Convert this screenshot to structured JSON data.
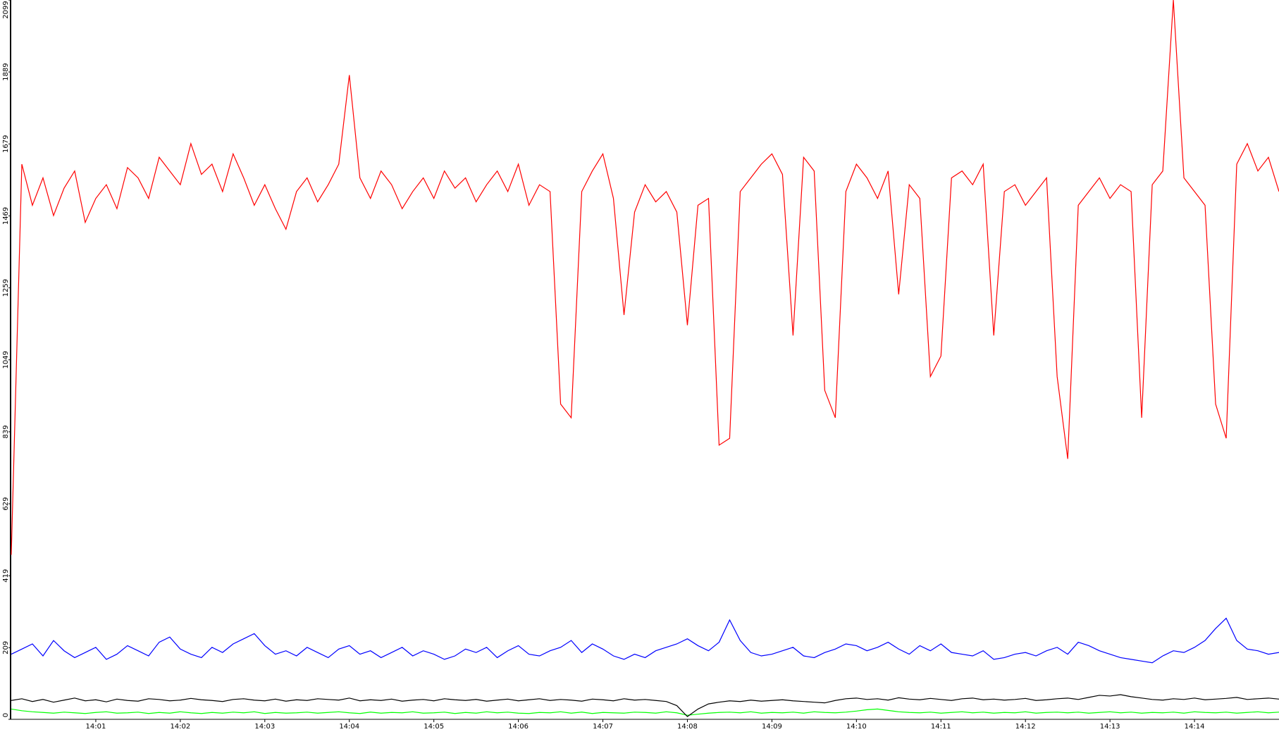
{
  "chart_data": {
    "type": "line",
    "x": [
      0,
      0.125,
      0.25,
      0.375,
      0.5,
      0.625,
      0.75,
      0.875,
      1,
      1.125,
      1.25,
      1.375,
      1.5,
      1.625,
      1.75,
      1.875,
      2,
      2.125,
      2.25,
      2.375,
      2.5,
      2.625,
      2.75,
      2.875,
      3,
      3.125,
      3.25,
      3.375,
      3.5,
      3.625,
      3.75,
      3.875,
      4,
      4.125,
      4.25,
      4.375,
      4.5,
      4.625,
      4.75,
      4.875,
      5,
      5.125,
      5.25,
      5.375,
      5.5,
      5.625,
      5.75,
      5.875,
      6,
      6.125,
      6.25,
      6.375,
      6.5,
      6.625,
      6.75,
      6.875,
      7,
      7.125,
      7.25,
      7.375,
      7.5,
      7.625,
      7.75,
      7.875,
      8,
      8.125,
      8.25,
      8.375,
      8.5,
      8.625,
      8.75,
      8.875,
      9,
      9.125,
      9.25,
      9.375,
      9.5,
      9.625,
      9.75,
      9.875,
      10,
      10.125,
      10.25,
      10.375,
      10.5,
      10.625,
      10.75,
      10.875,
      11,
      11.125,
      11.25,
      11.375,
      11.5,
      11.625,
      11.75,
      11.875,
      12,
      12.125,
      12.25,
      12.375,
      12.5,
      12.625,
      12.75,
      12.875,
      13,
      13.125,
      13.25,
      13.375,
      13.5,
      13.625,
      13.75,
      13.875,
      14,
      14.125,
      14.25,
      14.375,
      14.5,
      14.625,
      14.75,
      14.875,
      15
    ],
    "series": [
      {
        "color": "#ff0000",
        "values": [
          480,
          1620,
          1500,
          1580,
          1470,
          1550,
          1600,
          1450,
          1520,
          1560,
          1490,
          1610,
          1580,
          1520,
          1640,
          1600,
          1560,
          1680,
          1590,
          1620,
          1540,
          1650,
          1580,
          1500,
          1560,
          1490,
          1430,
          1540,
          1580,
          1510,
          1560,
          1620,
          1880,
          1580,
          1520,
          1600,
          1560,
          1490,
          1540,
          1580,
          1520,
          1600,
          1550,
          1580,
          1510,
          1560,
          1600,
          1540,
          1620,
          1500,
          1560,
          1540,
          920,
          880,
          1540,
          1600,
          1650,
          1520,
          1180,
          1480,
          1560,
          1510,
          1540,
          1480,
          1150,
          1500,
          1520,
          800,
          820,
          1540,
          1580,
          1620,
          1650,
          1590,
          1120,
          1640,
          1600,
          960,
          880,
          1540,
          1620,
          1580,
          1520,
          1600,
          1240,
          1560,
          1520,
          1000,
          1060,
          1580,
          1600,
          1560,
          1620,
          1120,
          1540,
          1560,
          1500,
          1540,
          1580,
          1000,
          760,
          1500,
          1540,
          1580,
          1520,
          1560,
          1540,
          880,
          1560,
          1600,
          2099,
          1580,
          1540,
          1500,
          920,
          820,
          1620,
          1680,
          1600,
          1640,
          1540
        ]
      },
      {
        "color": "#0000ff",
        "values": [
          190,
          205,
          220,
          185,
          230,
          200,
          180,
          195,
          210,
          175,
          190,
          215,
          200,
          185,
          225,
          240,
          205,
          190,
          180,
          210,
          195,
          220,
          235,
          250,
          215,
          190,
          200,
          185,
          210,
          195,
          180,
          205,
          215,
          190,
          200,
          180,
          195,
          210,
          185,
          200,
          190,
          175,
          185,
          205,
          195,
          210,
          180,
          200,
          215,
          190,
          185,
          200,
          210,
          230,
          195,
          220,
          205,
          185,
          175,
          190,
          180,
          200,
          210,
          220,
          235,
          215,
          200,
          225,
          290,
          230,
          195,
          185,
          190,
          200,
          210,
          185,
          180,
          195,
          205,
          220,
          215,
          200,
          210,
          225,
          205,
          190,
          215,
          200,
          220,
          195,
          190,
          185,
          200,
          175,
          180,
          190,
          195,
          185,
          200,
          210,
          190,
          225,
          215,
          200,
          190,
          180,
          175,
          170,
          165,
          185,
          200,
          195,
          210,
          230,
          265,
          295,
          230,
          205,
          200,
          190,
          195
        ]
      },
      {
        "color": "#000000",
        "values": [
          55,
          60,
          52,
          58,
          50,
          56,
          62,
          54,
          57,
          51,
          59,
          55,
          53,
          60,
          58,
          54,
          56,
          61,
          57,
          55,
          52,
          58,
          60,
          56,
          54,
          59,
          53,
          57,
          55,
          60,
          58,
          56,
          62,
          54,
          57,
          55,
          59,
          53,
          56,
          58,
          54,
          60,
          57,
          55,
          58,
          53,
          56,
          59,
          54,
          57,
          60,
          55,
          58,
          56,
          53,
          59,
          57,
          54,
          60,
          56,
          58,
          55,
          52,
          40,
          8,
          30,
          45,
          50,
          54,
          52,
          56,
          53,
          55,
          57,
          54,
          52,
          50,
          48,
          55,
          60,
          62,
          58,
          60,
          56,
          63,
          59,
          57,
          61,
          58,
          55,
          60,
          62,
          57,
          59,
          56,
          58,
          61,
          55,
          57,
          60,
          62,
          58,
          64,
          70,
          68,
          72,
          66,
          62,
          58,
          56,
          60,
          58,
          62,
          57,
          59,
          61,
          64,
          58,
          60,
          62,
          59
        ]
      },
      {
        "color": "#00ff00",
        "values": [
          30,
          25,
          22,
          20,
          18,
          21,
          19,
          17,
          20,
          22,
          18,
          19,
          21,
          17,
          20,
          18,
          22,
          19,
          17,
          20,
          18,
          21,
          19,
          22,
          17,
          20,
          18,
          19,
          21,
          18,
          20,
          22,
          19,
          17,
          21,
          18,
          20,
          19,
          22,
          18,
          19,
          21,
          17,
          20,
          18,
          22,
          19,
          21,
          18,
          17,
          20,
          19,
          22,
          18,
          21,
          17,
          20,
          19,
          18,
          21,
          20,
          18,
          22,
          19,
          12,
          15,
          18,
          20,
          21,
          19,
          22,
          18,
          20,
          19,
          21,
          18,
          22,
          20,
          19,
          21,
          24,
          28,
          30,
          26,
          22,
          20,
          19,
          21,
          18,
          20,
          22,
          19,
          21,
          18,
          20,
          19,
          22,
          18,
          20,
          21,
          19,
          21,
          18,
          20,
          22,
          19,
          21,
          18,
          20,
          19,
          21,
          18,
          22,
          20,
          19,
          21,
          18,
          20,
          22,
          19,
          21
        ]
      }
    ],
    "xlim": [
      0,
      15
    ],
    "xticks": [
      {
        "value": 1,
        "label": "14:01"
      },
      {
        "value": 2,
        "label": "14:02"
      },
      {
        "value": 3,
        "label": "14:03"
      },
      {
        "value": 4,
        "label": "14:04"
      },
      {
        "value": 5,
        "label": "14:05"
      },
      {
        "value": 6,
        "label": "14:06"
      },
      {
        "value": 7,
        "label": "14:07"
      },
      {
        "value": 8,
        "label": "14:08"
      },
      {
        "value": 9,
        "label": "14:09"
      },
      {
        "value": 10,
        "label": "14:10"
      },
      {
        "value": 11,
        "label": "14:11"
      },
      {
        "value": 12,
        "label": "14:12"
      },
      {
        "value": 13,
        "label": "14:13"
      },
      {
        "value": 14,
        "label": "14:14"
      }
    ],
    "ylim": [
      0,
      2099
    ],
    "yticks": [
      0,
      209,
      419,
      629,
      839,
      1049,
      1259,
      1469,
      1679,
      1889,
      2099
    ],
    "grid": false
  }
}
